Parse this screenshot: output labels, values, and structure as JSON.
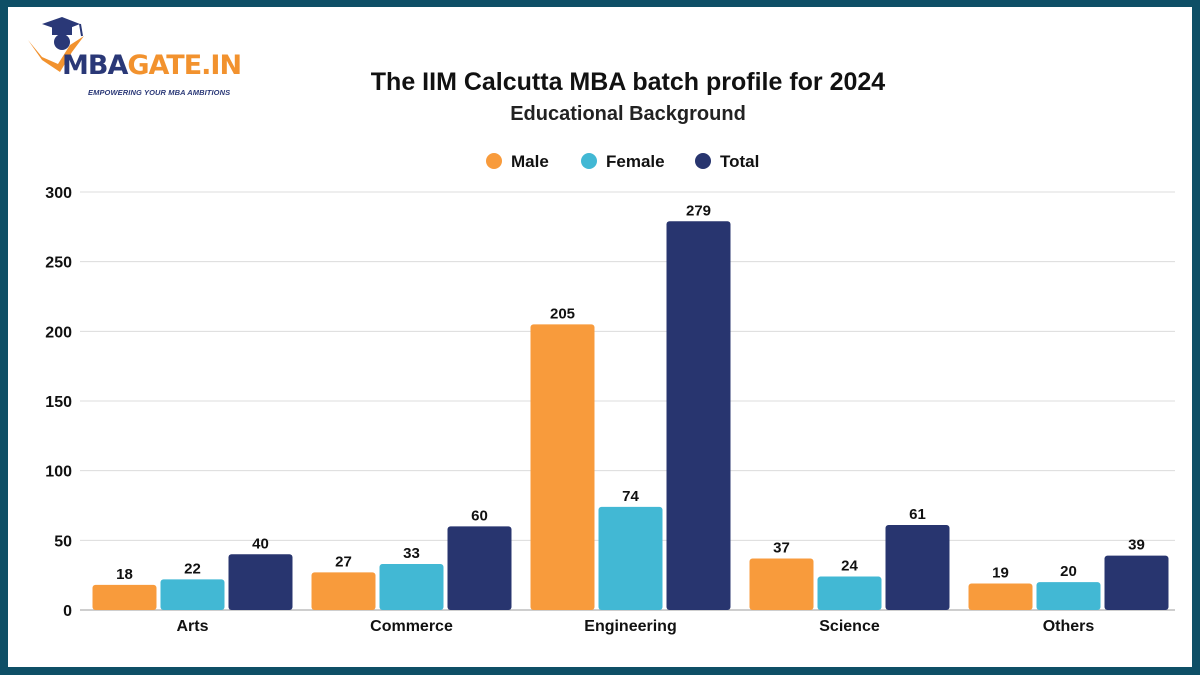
{
  "logo": {
    "name_part1": "MBA",
    "name_part2": "GATE.IN",
    "tagline": "EMPOWERING YOUR MBA AMBITIONS",
    "icon": "graduation-cap-icon",
    "colors": {
      "navy": "#2a3877",
      "orange": "#f2922e"
    }
  },
  "chart_data": {
    "type": "bar",
    "title": "The IIM Calcutta MBA batch profile for 2024",
    "subtitle": "Educational Background",
    "categories": [
      "Arts",
      "Commerce",
      "Engineering",
      "Science",
      "Others"
    ],
    "series": [
      {
        "name": "Male",
        "color": "#f89b3c",
        "values": [
          18,
          27,
          205,
          37,
          19
        ]
      },
      {
        "name": "Female",
        "color": "#42b8d4",
        "values": [
          22,
          33,
          74,
          24,
          20
        ]
      },
      {
        "name": "Total",
        "color": "#28356f",
        "values": [
          40,
          60,
          279,
          61,
          39
        ]
      }
    ],
    "ylim": [
      0,
      300
    ],
    "yticks": [
      0,
      50,
      100,
      150,
      200,
      250,
      300
    ],
    "grid": true,
    "legend_position": "top-center",
    "data_labels": true
  }
}
